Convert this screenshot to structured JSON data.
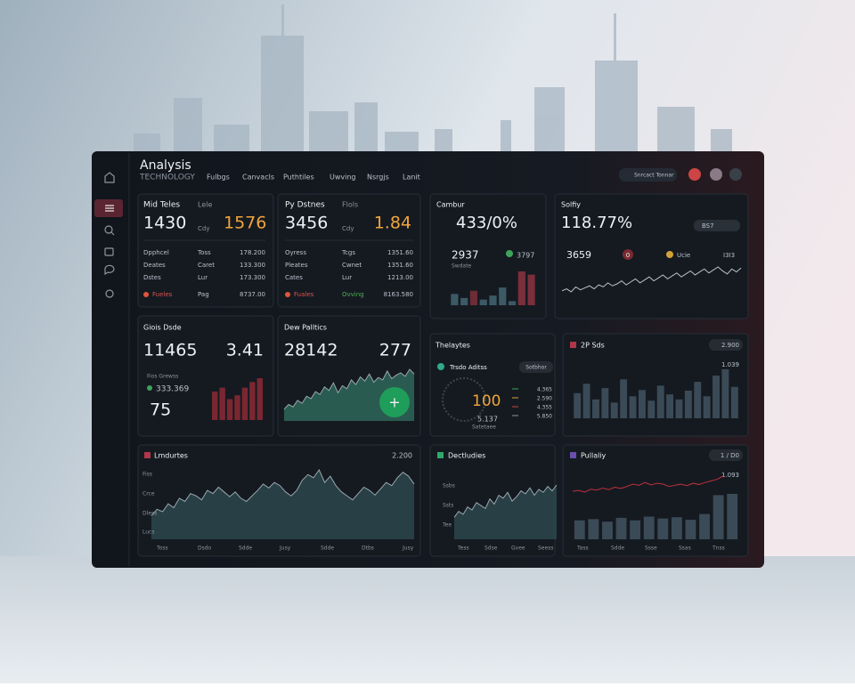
{
  "header": {
    "title": "Analysis",
    "subtitle": "TECHNOLOGY",
    "nav": [
      "Fulbgs",
      "Canvacls",
      "Puthtiles",
      "Uwving",
      "Nsrgjs",
      "Lanit"
    ],
    "search": "Snrcact Tonnar"
  },
  "cards": [
    {
      "title": "Mid Teles",
      "tag": "Lele",
      "value": "1430",
      "value2": "1576",
      "note": "Cdy",
      "rows": [
        [
          "Dpphcel",
          "Toss",
          "178.200"
        ],
        [
          "Deates",
          "Caret",
          "133.300"
        ],
        [
          "Dstes",
          "Lur",
          "173.300"
        ],
        [
          "Fueles",
          "Pag",
          "8737.00"
        ]
      ]
    },
    {
      "title": "Py Dstnes",
      "tag": "Flols",
      "value": "3456",
      "value2": "1.84",
      "note": "Cdy",
      "rows": [
        [
          "Oyress",
          "Tcgs",
          "1351.60"
        ],
        [
          "Pleates",
          "Cwnet",
          "1351.60"
        ],
        [
          "Cates",
          "Lur",
          "1213.00"
        ],
        [
          "Fuales",
          "Ovving",
          "8163.580"
        ]
      ]
    },
    {
      "title": "Cambur",
      "value": "433/0%",
      "stat": "2937",
      "stat2": "3797",
      "note": "Swdate",
      "chart": {
        "type": "bar",
        "values": [
          14,
          9,
          18,
          7,
          12,
          22,
          5,
          42,
          38
        ],
        "colors": [
          "#3c5a66",
          "#3c5a66",
          "#6d2c36",
          "#3c5a66",
          "#3c5a66",
          "#3c5a66",
          "#3c5a66",
          "#7a2f3a",
          "#7a2f3a"
        ]
      }
    },
    {
      "title": "Solfiy",
      "value": "118.77%",
      "chip": "BS7",
      "stat": "3659",
      "badge": "0",
      "stat2": "Ucie",
      "stat3": "I3I3",
      "chart": {
        "type": "line",
        "values": [
          10,
          12,
          9,
          14,
          11,
          13,
          15,
          12,
          16,
          14,
          18,
          15,
          17,
          20,
          16,
          19,
          22,
          18,
          21,
          24,
          20,
          23,
          26,
          22,
          25,
          28,
          24,
          27,
          30,
          26,
          29,
          32,
          28,
          31,
          34,
          30,
          27,
          32,
          29,
          33
        ],
        "color": "#b8c0c8"
      }
    },
    {
      "title": "Giois Dsde",
      "value": "11465",
      "value2": "3.41",
      "note": "Fios Grewss",
      "stat": "333.369",
      "value3": "75",
      "chart": {
        "type": "bar",
        "values": [
          30,
          34,
          22,
          26,
          34,
          40,
          44
        ],
        "color": "#7a2732"
      }
    },
    {
      "title": "Dew Palltics",
      "value": "28142",
      "value2": "277",
      "button": "+",
      "chart": {
        "type": "area",
        "values": [
          20,
          28,
          24,
          35,
          30,
          42,
          38,
          50,
          45,
          58,
          52,
          65,
          48,
          60,
          55,
          70,
          62,
          75,
          68,
          80,
          66,
          74,
          70,
          85,
          72,
          78,
          82,
          76,
          88,
          80
        ],
        "color": "#2f6b5e"
      }
    },
    {
      "title": "Thelaytes",
      "subtitle": "Trsdo Aditss",
      "chip": "Sotbhor",
      "value": "100",
      "stat": "5.137",
      "note": "Satetaee",
      "legend": [
        "4.365",
        "2.590",
        "4.355",
        "5.850"
      ]
    },
    {
      "title": "2P Sds",
      "chip": "2.900",
      "stat": "1.039",
      "chart": {
        "type": "bar",
        "values": [
          40,
          55,
          30,
          48,
          25,
          62,
          35,
          45,
          28,
          52,
          38,
          30,
          44,
          58,
          35,
          68,
          78,
          50
        ],
        "color": "#3b4a57"
      }
    },
    {
      "title": "Lmdurtes",
      "chip": "2.200",
      "yticks": [
        "Fiss",
        "Crce",
        "Dless",
        "Lucs"
      ],
      "xticks": [
        "Toss",
        "Dsdo",
        "Sdde",
        "Jusy",
        "Sdde",
        "Dtbs",
        "Jusy"
      ],
      "chart": {
        "type": "area",
        "values": [
          30,
          38,
          35,
          45,
          40,
          52,
          48,
          58,
          55,
          50,
          62,
          58,
          66,
          60,
          54,
          60,
          52,
          48,
          55,
          62,
          70,
          65,
          72,
          68,
          60,
          55,
          62,
          75,
          82,
          78,
          88,
          72,
          80,
          68,
          60,
          55,
          50,
          58,
          66,
          62,
          56,
          64,
          72,
          68,
          78,
          85,
          80,
          70
        ],
        "color": "#2d4a4f"
      }
    },
    {
      "title": "Dectludies",
      "yticks": [
        "Ssbs",
        "Ssts",
        "Tee"
      ],
      "xticks": [
        "Tess",
        "Sdse",
        "Gvee",
        "Seess"
      ],
      "chart": {
        "type": "area",
        "values": [
          30,
          38,
          34,
          44,
          40,
          50,
          46,
          42,
          55,
          48,
          60,
          56,
          64,
          52,
          58,
          66,
          62,
          70,
          60,
          68,
          64,
          72,
          66,
          74
        ],
        "color": "#2d4a4f"
      }
    },
    {
      "title": "Pullaliy",
      "chip": "1 / D0",
      "stat": "1.093",
      "xticks": [
        "Tass",
        "Sdde",
        "Ssse",
        "Ssas",
        "Tnss"
      ],
      "chart": {
        "type": "line",
        "values": [
          40,
          42,
          38,
          45,
          43,
          48,
          44,
          50,
          47,
          52,
          58,
          55,
          62,
          56,
          60,
          58,
          52,
          55,
          58,
          54,
          60,
          57,
          62,
          66,
          70,
          78
        ],
        "color": "#c0303a"
      },
      "chart2": {
        "type": "bar",
        "values": [
          30,
          32,
          28,
          34,
          30,
          36,
          33,
          35,
          31,
          40,
          70,
          72
        ],
        "color": "#3b4a57"
      }
    }
  ]
}
